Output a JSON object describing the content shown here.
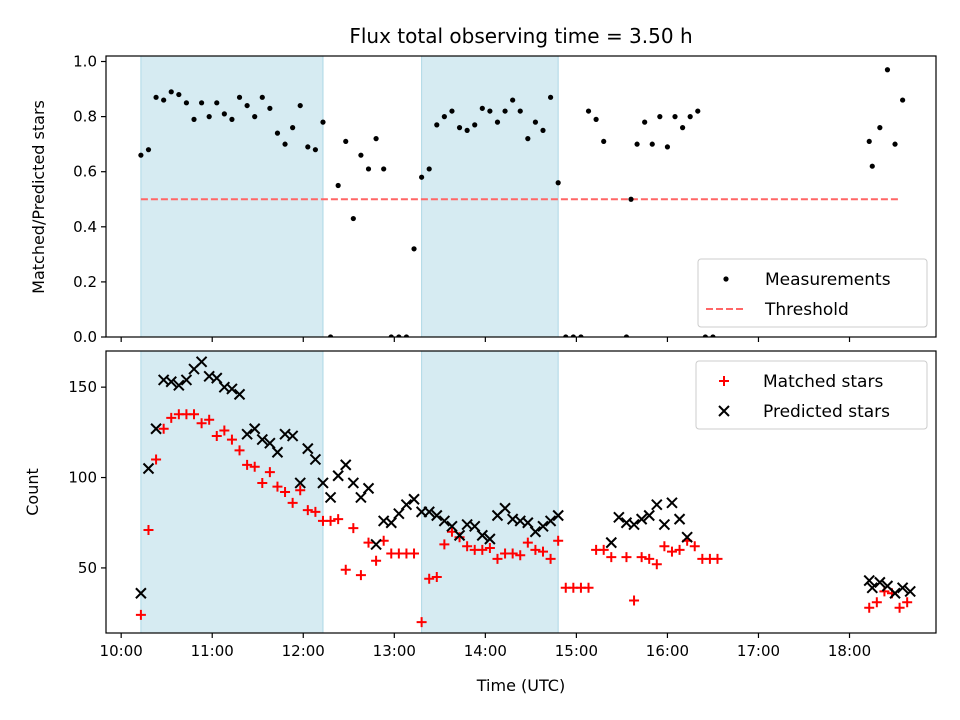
{
  "title": "Flux total observing time = 3.50 h",
  "xlabel": "Time (UTC)",
  "x_ticks": [
    "10:00",
    "11:00",
    "12:00",
    "13:00",
    "14:00",
    "15:00",
    "16:00",
    "17:00",
    "18:00"
  ],
  "colors": {
    "shade": "#add8e6",
    "threshold": "#ff6666",
    "matched": "#ff0000",
    "predicted": "#000000",
    "measurement": "#000000"
  },
  "chart_data": [
    {
      "type": "scatter",
      "ylabel": "Matched/Predicted stars",
      "xlim": [
        "09:50",
        "18:57"
      ],
      "ylim": [
        0,
        1.02
      ],
      "y_ticks": [
        "0.0",
        "0.2",
        "0.4",
        "0.6",
        "0.8",
        "1.0"
      ],
      "grid": false,
      "legend_position": "lower-right",
      "shaded_intervals": [
        [
          "10:13",
          "12:13"
        ],
        [
          "13:18",
          "14:48"
        ]
      ],
      "threshold": {
        "name": "Threshold",
        "value": 0.5,
        "x_range": [
          "10:13",
          "18:33"
        ],
        "style": "dashed"
      },
      "series": [
        {
          "name": "Measurements",
          "points": [
            [
              "10:13",
              0.66
            ],
            [
              "10:18",
              0.68
            ],
            [
              "10:23",
              0.87
            ],
            [
              "10:28",
              0.86
            ],
            [
              "10:33",
              0.89
            ],
            [
              "10:38",
              0.88
            ],
            [
              "10:43",
              0.85
            ],
            [
              "10:48",
              0.79
            ],
            [
              "10:53",
              0.85
            ],
            [
              "10:58",
              0.8
            ],
            [
              "11:03",
              0.85
            ],
            [
              "11:08",
              0.81
            ],
            [
              "11:13",
              0.79
            ],
            [
              "11:18",
              0.87
            ],
            [
              "11:23",
              0.84
            ],
            [
              "11:28",
              0.8
            ],
            [
              "11:33",
              0.87
            ],
            [
              "11:38",
              0.83
            ],
            [
              "11:43",
              0.74
            ],
            [
              "11:48",
              0.7
            ],
            [
              "11:53",
              0.76
            ],
            [
              "11:58",
              0.84
            ],
            [
              "12:03",
              0.69
            ],
            [
              "12:08",
              0.68
            ],
            [
              "12:13",
              0.78
            ],
            [
              "12:18",
              0.0
            ],
            [
              "12:23",
              0.55
            ],
            [
              "12:28",
              0.71
            ],
            [
              "12:33",
              0.43
            ],
            [
              "12:38",
              0.66
            ],
            [
              "12:43",
              0.61
            ],
            [
              "12:48",
              0.72
            ],
            [
              "12:53",
              0.61
            ],
            [
              "12:58",
              0.0
            ],
            [
              "13:03",
              0.0
            ],
            [
              "13:08",
              0.0
            ],
            [
              "13:13",
              0.32
            ],
            [
              "13:18",
              0.58
            ],
            [
              "13:23",
              0.61
            ],
            [
              "13:28",
              0.77
            ],
            [
              "13:33",
              0.8
            ],
            [
              "13:38",
              0.82
            ],
            [
              "13:43",
              0.76
            ],
            [
              "13:48",
              0.75
            ],
            [
              "13:53",
              0.77
            ],
            [
              "13:58",
              0.83
            ],
            [
              "14:03",
              0.82
            ],
            [
              "14:08",
              0.78
            ],
            [
              "14:13",
              0.82
            ],
            [
              "14:18",
              0.86
            ],
            [
              "14:23",
              0.82
            ],
            [
              "14:28",
              0.72
            ],
            [
              "14:33",
              0.78
            ],
            [
              "14:38",
              0.75
            ],
            [
              "14:43",
              0.87
            ],
            [
              "14:48",
              0.56
            ],
            [
              "14:53",
              0.0
            ],
            [
              "14:58",
              0.0
            ],
            [
              "15:03",
              0.0
            ],
            [
              "15:08",
              0.82
            ],
            [
              "15:13",
              0.79
            ],
            [
              "15:18",
              0.71
            ],
            [
              "15:33",
              0.0
            ],
            [
              "15:36",
              0.5
            ],
            [
              "15:40",
              0.7
            ],
            [
              "15:45",
              0.78
            ],
            [
              "15:50",
              0.7
            ],
            [
              "15:55",
              0.8
            ],
            [
              "16:00",
              0.69
            ],
            [
              "16:05",
              0.8
            ],
            [
              "16:10",
              0.76
            ],
            [
              "16:15",
              0.8
            ],
            [
              "16:20",
              0.82
            ],
            [
              "16:25",
              0.0
            ],
            [
              "16:30",
              0.0
            ],
            [
              "18:13",
              0.71
            ],
            [
              "18:15",
              0.62
            ],
            [
              "18:20",
              0.76
            ],
            [
              "18:25",
              0.97
            ],
            [
              "18:30",
              0.7
            ],
            [
              "18:35",
              0.86
            ]
          ]
        }
      ]
    },
    {
      "type": "scatter",
      "ylabel": "Count",
      "xlim": [
        "09:50",
        "18:57"
      ],
      "ylim": [
        14,
        170
      ],
      "y_ticks": [
        "50",
        "100",
        "150"
      ],
      "grid": false,
      "legend_position": "top-right",
      "shaded_intervals": [
        [
          "10:13",
          "12:13"
        ],
        [
          "13:18",
          "14:48"
        ]
      ],
      "series": [
        {
          "name": "Matched stars",
          "marker": "plus",
          "points": [
            [
              "10:13",
              24
            ],
            [
              "10:18",
              71
            ],
            [
              "10:23",
              110
            ],
            [
              "10:28",
              127
            ],
            [
              "10:33",
              133
            ],
            [
              "10:38",
              135
            ],
            [
              "10:43",
              135
            ],
            [
              "10:48",
              135
            ],
            [
              "10:53",
              130
            ],
            [
              "10:58",
              132
            ],
            [
              "11:03",
              123
            ],
            [
              "11:08",
              126
            ],
            [
              "11:13",
              121
            ],
            [
              "11:18",
              115
            ],
            [
              "11:23",
              107
            ],
            [
              "11:28",
              106
            ],
            [
              "11:33",
              97
            ],
            [
              "11:38",
              103
            ],
            [
              "11:43",
              95
            ],
            [
              "11:48",
              92
            ],
            [
              "11:53",
              86
            ],
            [
              "11:58",
              93
            ],
            [
              "12:03",
              82
            ],
            [
              "12:08",
              81
            ],
            [
              "12:13",
              76
            ],
            [
              "12:18",
              76
            ],
            [
              "12:23",
              77
            ],
            [
              "12:28",
              49
            ],
            [
              "12:33",
              72
            ],
            [
              "12:38",
              46
            ],
            [
              "12:43",
              64
            ],
            [
              "12:48",
              54
            ],
            [
              "12:53",
              65
            ],
            [
              "12:58",
              58
            ],
            [
              "13:03",
              58
            ],
            [
              "13:08",
              58
            ],
            [
              "13:13",
              58
            ],
            [
              "13:18",
              20
            ],
            [
              "13:23",
              44
            ],
            [
              "13:28",
              45
            ],
            [
              "13:33",
              63
            ],
            [
              "13:38",
              70
            ],
            [
              "13:43",
              67
            ],
            [
              "13:48",
              62
            ],
            [
              "13:53",
              60
            ],
            [
              "13:58",
              60
            ],
            [
              "14:03",
              61
            ],
            [
              "14:08",
              55
            ],
            [
              "14:13",
              58
            ],
            [
              "14:18",
              58
            ],
            [
              "14:23",
              57
            ],
            [
              "14:28",
              64
            ],
            [
              "14:33",
              60
            ],
            [
              "14:38",
              59
            ],
            [
              "14:43",
              55
            ],
            [
              "14:48",
              65
            ],
            [
              "14:53",
              39
            ],
            [
              "14:58",
              39
            ],
            [
              "15:03",
              39
            ],
            [
              "15:08",
              39
            ],
            [
              "15:13",
              60
            ],
            [
              "15:18",
              60
            ],
            [
              "15:23",
              56
            ],
            [
              "15:33",
              56
            ],
            [
              "15:38",
              32
            ],
            [
              "15:43",
              56
            ],
            [
              "15:48",
              55
            ],
            [
              "15:53",
              52
            ],
            [
              "15:58",
              62
            ],
            [
              "16:03",
              59
            ],
            [
              "16:08",
              60
            ],
            [
              "16:13",
              65
            ],
            [
              "16:18",
              62
            ],
            [
              "16:23",
              55
            ],
            [
              "16:28",
              55
            ],
            [
              "16:33",
              55
            ],
            [
              "18:13",
              28
            ],
            [
              "18:18",
              31
            ],
            [
              "18:23",
              37
            ],
            [
              "18:28",
              36
            ],
            [
              "18:33",
              28
            ],
            [
              "18:38",
              31
            ]
          ]
        },
        {
          "name": "Predicted stars",
          "marker": "x",
          "points": [
            [
              "10:13",
              36
            ],
            [
              "10:18",
              105
            ],
            [
              "10:23",
              127
            ],
            [
              "10:28",
              154
            ],
            [
              "10:33",
              153
            ],
            [
              "10:38",
              151
            ],
            [
              "10:43",
              154
            ],
            [
              "10:48",
              160
            ],
            [
              "10:53",
              164
            ],
            [
              "10:58",
              156
            ],
            [
              "11:03",
              155
            ],
            [
              "11:08",
              150
            ],
            [
              "11:13",
              149
            ],
            [
              "11:18",
              146
            ],
            [
              "11:23",
              124
            ],
            [
              "11:28",
              127
            ],
            [
              "11:33",
              121
            ],
            [
              "11:38",
              119
            ],
            [
              "11:43",
              114
            ],
            [
              "11:48",
              124
            ],
            [
              "11:53",
              123
            ],
            [
              "11:58",
              97
            ],
            [
              "12:03",
              116
            ],
            [
              "12:08",
              110
            ],
            [
              "12:13",
              97
            ],
            [
              "12:18",
              89
            ],
            [
              "12:23",
              101
            ],
            [
              "12:28",
              107
            ],
            [
              "12:33",
              97
            ],
            [
              "12:38",
              89
            ],
            [
              "12:43",
              94
            ],
            [
              "12:48",
              63
            ],
            [
              "12:53",
              76
            ],
            [
              "12:58",
              75
            ],
            [
              "13:03",
              80
            ],
            [
              "13:08",
              85
            ],
            [
              "13:13",
              88
            ],
            [
              "13:18",
              81
            ],
            [
              "13:23",
              81
            ],
            [
              "13:28",
              79
            ],
            [
              "13:33",
              76
            ],
            [
              "13:38",
              73
            ],
            [
              "13:43",
              68
            ],
            [
              "13:48",
              74
            ],
            [
              "13:53",
              73
            ],
            [
              "13:58",
              68
            ],
            [
              "14:03",
              66
            ],
            [
              "14:08",
              79
            ],
            [
              "14:13",
              83
            ],
            [
              "14:18",
              77
            ],
            [
              "14:23",
              76
            ],
            [
              "14:28",
              75
            ],
            [
              "14:33",
              70
            ],
            [
              "14:38",
              73
            ],
            [
              "14:43",
              76
            ],
            [
              "14:48",
              79
            ],
            [
              "15:23",
              64
            ],
            [
              "15:28",
              78
            ],
            [
              "15:33",
              75
            ],
            [
              "15:38",
              74
            ],
            [
              "15:43",
              77
            ],
            [
              "15:48",
              79
            ],
            [
              "15:53",
              85
            ],
            [
              "15:58",
              74
            ],
            [
              "16:03",
              86
            ],
            [
              "16:08",
              77
            ],
            [
              "16:13",
              67
            ],
            [
              "18:13",
              43
            ],
            [
              "18:15",
              39
            ],
            [
              "18:20",
              42
            ],
            [
              "18:25",
              40
            ],
            [
              "18:30",
              36
            ],
            [
              "18:35",
              39
            ],
            [
              "18:40",
              37
            ]
          ]
        }
      ]
    }
  ]
}
